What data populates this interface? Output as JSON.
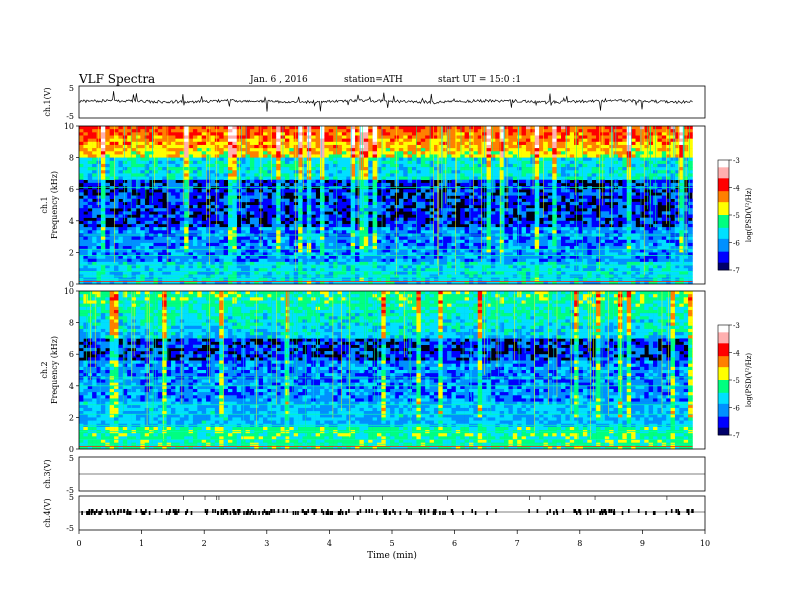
{
  "header": {
    "title": "VLF Spectra",
    "date": "Jan. 6 , 2016",
    "station": "station=ATH",
    "start": "start UT = 15:0 :1"
  },
  "chart_data": [
    {
      "type": "line",
      "name": "ch.1 waveform",
      "ylabel": "ch.1(V)",
      "ylim": [
        -5,
        5
      ],
      "yticks": [
        "5",
        "-5"
      ],
      "baseline": 0,
      "note": "continuous waveform near 0 V with many short spikes"
    },
    {
      "type": "heatmap",
      "name": "ch.1 spectrogram",
      "ylabel_top": "ch.1",
      "ylabel": "Frequency (kHz)",
      "ylim": [
        0,
        10
      ],
      "yticks": [
        "0",
        "2",
        "4",
        "6",
        "8",
        "10"
      ],
      "colorbar": {
        "label": "log(PSD(V²/Hz)",
        "range": [
          -7,
          -3
        ],
        "ticks": [
          "-3",
          "-4",
          "-5",
          "-6",
          "-7"
        ]
      }
    },
    {
      "type": "heatmap",
      "name": "ch.2 spectrogram",
      "ylabel_top": "ch.2",
      "ylabel": "Frequency (kHz)",
      "ylim": [
        0,
        10
      ],
      "yticks": [
        "0",
        "2",
        "4",
        "6",
        "8",
        "10"
      ],
      "colorbar": {
        "label": "log(PSD(V²/Hz)",
        "range": [
          -7,
          -3
        ],
        "ticks": [
          "-3",
          "-4",
          "-5",
          "-6",
          "-7"
        ]
      }
    },
    {
      "type": "line",
      "name": "ch.3 waveform",
      "ylabel": "ch.3(V)",
      "ylim": [
        -5,
        5
      ],
      "yticks": [
        "5",
        "-5"
      ],
      "note": "flat trace"
    },
    {
      "type": "line",
      "name": "ch.4 waveform",
      "ylabel": "ch.4(V)",
      "ylim": [
        -5,
        5
      ],
      "yticks": [
        "5",
        "-5"
      ],
      "note": "pulse train near 0 V, gaps near 6.0-7.5 min"
    }
  ],
  "x_axis": {
    "label": "Time (min)",
    "xlim": [
      0,
      10
    ],
    "ticks": [
      "0",
      "1",
      "2",
      "3",
      "4",
      "5",
      "6",
      "7",
      "8",
      "9",
      "10"
    ]
  },
  "colors": {
    "scale": [
      "#00006a",
      "#0000ff",
      "#0090ff",
      "#00e0ff",
      "#00ff80",
      "#ffff00",
      "#ff8000",
      "#ff0000",
      "#ffb0b0",
      "#ffffff"
    ],
    "background_dark": "#000010"
  }
}
